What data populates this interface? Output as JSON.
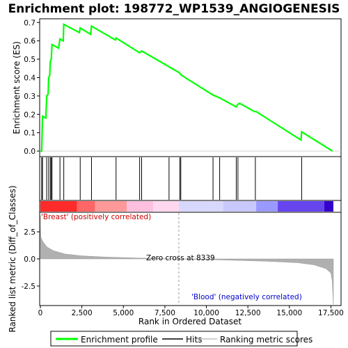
{
  "chart_data": {
    "type": "line",
    "title": "Enrichment plot: 198772_WP1539_ANGIOGENESIS",
    "top_panel": {
      "ylabel": "Enrichment score (ES)",
      "ylim": [
        -0.03,
        0.72
      ],
      "yticks": [
        0.0,
        0.1,
        0.2,
        0.3,
        0.4,
        0.5,
        0.6,
        0.7
      ],
      "ytick_labels": [
        "0.0",
        "0.1",
        "0.2",
        "0.3",
        "0.4",
        "0.5",
        "0.6",
        "0.7"
      ],
      "series_name": "Enrichment profile",
      "color": "#00ff00",
      "points": [
        [
          0,
          0.0
        ],
        [
          80,
          0.0
        ],
        [
          130,
          0.19
        ],
        [
          330,
          0.18
        ],
        [
          380,
          0.3
        ],
        [
          470,
          0.31
        ],
        [
          500,
          0.4
        ],
        [
          560,
          0.41
        ],
        [
          600,
          0.49
        ],
        [
          660,
          0.5
        ],
        [
          700,
          0.58
        ],
        [
          1100,
          0.56
        ],
        [
          1180,
          0.61
        ],
        [
          1380,
          0.6
        ],
        [
          1410,
          0.69
        ],
        [
          2350,
          0.645
        ],
        [
          2400,
          0.67
        ],
        [
          3030,
          0.635
        ],
        [
          3080,
          0.68
        ],
        [
          4520,
          0.605
        ],
        [
          4560,
          0.615
        ],
        [
          5980,
          0.535
        ],
        [
          6100,
          0.545
        ],
        [
          6200,
          0.54
        ],
        [
          8400,
          0.425
        ],
        [
          8460,
          0.415
        ],
        [
          10400,
          0.305
        ],
        [
          10800,
          0.29
        ],
        [
          11800,
          0.24
        ],
        [
          11900,
          0.255
        ],
        [
          12000,
          0.26
        ],
        [
          12900,
          0.215
        ],
        [
          13000,
          0.215
        ],
        [
          15700,
          0.06
        ],
        [
          15740,
          0.105
        ],
        [
          17600,
          0.0
        ]
      ]
    },
    "hits": [
      80,
      130,
      380,
      500,
      600,
      660,
      700,
      1180,
      1410,
      2400,
      3080,
      4560,
      5980,
      6100,
      7750,
      8400,
      8460,
      10400,
      10800,
      11800,
      11900,
      12950,
      15740
    ],
    "bottom_panel": {
      "ylabel": "Ranked list metric (Diff_of_Classes)",
      "ylim": [
        -4.3,
        4.3
      ],
      "yticks": [
        -2.5,
        0.0,
        2.5
      ],
      "ytick_labels": [
        "-2.5",
        "0.0",
        "2.5"
      ],
      "metric_points": [
        [
          0,
          4.0
        ],
        [
          30,
          2.0
        ],
        [
          150,
          1.6
        ],
        [
          400,
          1.1
        ],
        [
          800,
          0.75
        ],
        [
          1500,
          0.45
        ],
        [
          2500,
          0.28
        ],
        [
          4000,
          0.17
        ],
        [
          6000,
          0.08
        ],
        [
          8339,
          0.0
        ],
        [
          10000,
          -0.06
        ],
        [
          12000,
          -0.14
        ],
        [
          14000,
          -0.24
        ],
        [
          15500,
          -0.35
        ],
        [
          16500,
          -0.55
        ],
        [
          17200,
          -0.9
        ],
        [
          17500,
          -1.3
        ],
        [
          17580,
          -2.0
        ],
        [
          17650,
          -4.2
        ]
      ],
      "zero_cross_label": "Zero cross at 8339",
      "zero_cross": 8339,
      "pos_label": "'Breast' (positively correlated)",
      "neg_label": "'Blood' (negatively correlated)"
    },
    "xlabel": "Rank in Ordered Dataset",
    "xlim": [
      0,
      17650
    ],
    "xticks": [
      0,
      2500,
      5000,
      7500,
      10000,
      12500,
      15000,
      17500
    ],
    "xtick_labels": [
      "0",
      "2,500",
      "5,000",
      "7,500",
      "10,000",
      "12,500",
      "15,000",
      "17,500"
    ],
    "heatmap_segments": [
      {
        "from": 0,
        "to": 2200,
        "color": "#ff2a2a"
      },
      {
        "from": 2200,
        "to": 3300,
        "color": "#ff6666"
      },
      {
        "from": 3300,
        "to": 5200,
        "color": "#ff9999"
      },
      {
        "from": 5200,
        "to": 6800,
        "color": "#ffc0e0"
      },
      {
        "from": 6800,
        "to": 8339,
        "color": "#ffd8f0"
      },
      {
        "from": 8339,
        "to": 11000,
        "color": "#d8d8ff"
      },
      {
        "from": 11000,
        "to": 13000,
        "color": "#c8c8ff"
      },
      {
        "from": 13000,
        "to": 14300,
        "color": "#9999ff"
      },
      {
        "from": 14300,
        "to": 17100,
        "color": "#6644ee"
      },
      {
        "from": 17100,
        "to": 17650,
        "color": "#3300cc"
      }
    ],
    "legend": {
      "items": [
        {
          "label": "Enrichment profile",
          "color": "#00ff00"
        },
        {
          "label": "Hits",
          "color": "#000000"
        },
        {
          "label": "Ranking metric scores",
          "color": "#c0c0c0"
        }
      ]
    },
    "colors": {
      "pos_text": "#cc0000",
      "neg_text": "#0000cc",
      "metric_fill": "#b0b0b0"
    }
  }
}
